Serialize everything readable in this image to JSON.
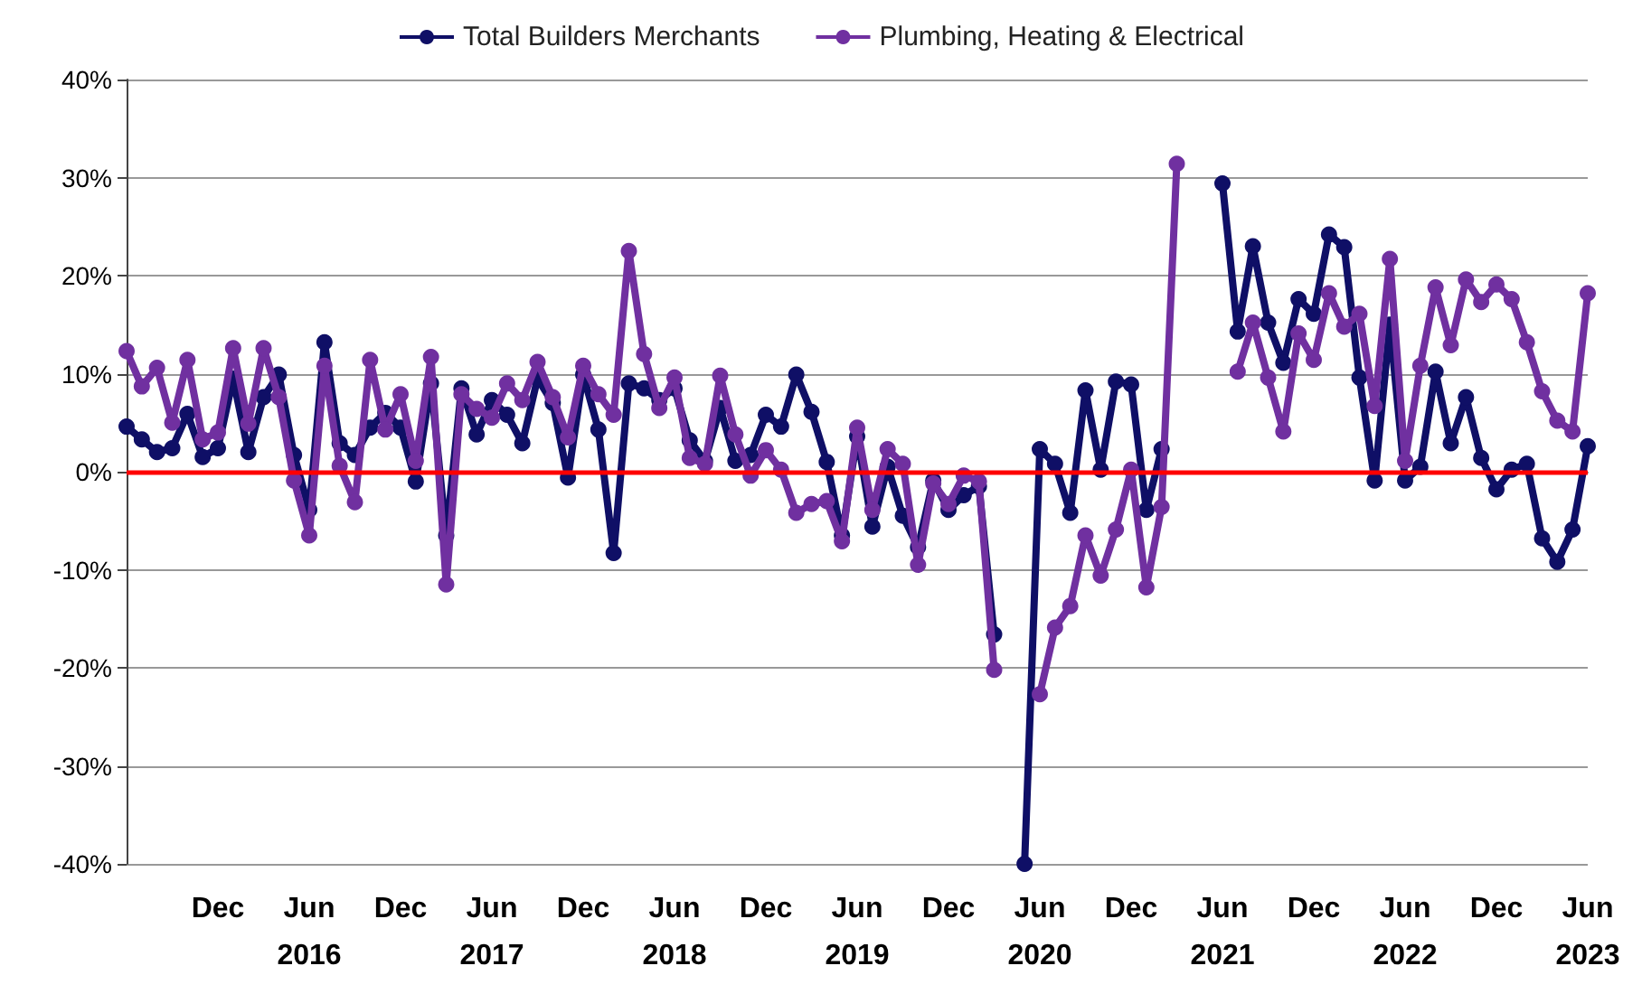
{
  "chart_data": {
    "type": "line",
    "categories": [
      null,
      null,
      null,
      null,
      null,
      null,
      "Dec",
      null,
      null,
      null,
      null,
      null,
      "Jun\n2016",
      null,
      null,
      null,
      null,
      null,
      "Dec",
      null,
      null,
      null,
      null,
      null,
      "Jun\n2017",
      null,
      null,
      null,
      null,
      null,
      "Dec",
      null,
      null,
      null,
      null,
      null,
      "Jun\n2018",
      null,
      null,
      null,
      null,
      null,
      "Dec",
      null,
      null,
      null,
      null,
      null,
      "Jun\n2019",
      null,
      null,
      null,
      null,
      null,
      "Dec",
      null,
      null,
      null,
      null,
      null,
      "Jun\n2020",
      null,
      null,
      null,
      null,
      null,
      "Dec",
      null,
      null,
      null,
      null,
      null,
      "Jun\n2021",
      null,
      null,
      null,
      null,
      null,
      "Dec",
      null,
      null,
      null,
      null,
      null,
      "Jun\n2022",
      null,
      null,
      null,
      null,
      null,
      "Dec",
      null,
      null,
      null,
      null,
      null,
      "Jun\n2023"
    ],
    "series": [
      {
        "name": "Total Builders Merchants",
        "color": "#0f0f66",
        "values": [
          4.6,
          3.3,
          2.0,
          2.4,
          5.9,
          1.5,
          2.4,
          9.5,
          2.0,
          7.6,
          9.9,
          1.7,
          -3.9,
          13.2,
          2.9,
          1.7,
          4.5,
          6.0,
          4.5,
          -1.0,
          9.0,
          -6.5,
          8.5,
          3.8,
          7.3,
          5.8,
          2.9,
          9.5,
          7.0,
          -0.6,
          9.9,
          4.3,
          -8.3,
          9.0,
          8.5,
          7.3,
          8.5,
          3.2,
          1.1,
          6.5,
          1.1,
          1.7,
          5.8,
          4.6,
          9.9,
          6.1,
          1.0,
          -6.5,
          3.6,
          -5.6,
          0.5,
          -4.5,
          -7.7,
          -0.9,
          -3.9,
          -2.4,
          -1.5,
          -16.6,
          null,
          -40,
          2.3,
          0.8,
          -4.2,
          8.3,
          0.2,
          9.2,
          8.9,
          -3.9,
          2.3,
          null,
          null,
          null,
          29.4,
          14.3,
          23,
          15.2,
          11.1,
          17.6,
          16.1,
          24.2,
          22.9,
          9.6,
          -0.9,
          15,
          -0.9,
          0.5,
          10.2,
          2.9,
          7.6,
          1.4,
          -1.8,
          0.2,
          0.8,
          -6.8,
          -9.2,
          -5.9,
          2.6
        ]
      },
      {
        "name": "Plumbing, Heating & Electrical",
        "color": "#7030a0",
        "values": [
          12.3,
          8.7,
          10.6,
          5.0,
          11.4,
          3.3,
          4.0,
          12.6,
          4.9,
          12.6,
          7.6,
          -0.9,
          -6.5,
          10.8,
          0.6,
          -3.1,
          11.4,
          4.3,
          7.9,
          1.1,
          11.7,
          -11.5,
          7.9,
          6.4,
          5.5,
          9.0,
          7.3,
          11.2,
          7.6,
          3.5,
          10.8,
          7.9,
          5.8,
          22.5,
          12.0,
          6.5,
          9.6,
          1.4,
          0.8,
          9.8,
          3.8,
          -0.4,
          2.2,
          0.2,
          -4.2,
          -3.3,
          -3.0,
          -7.1,
          4.5,
          -3.9,
          2.3,
          0.8,
          -9.5,
          -1.2,
          -3.3,
          -0.4,
          -1.0,
          -20.2,
          null,
          null,
          -22.7,
          -15.9,
          -13.7,
          -6.5,
          -10.6,
          -5.9,
          0.2,
          -11.8,
          -3.6,
          31.4,
          null,
          null,
          null,
          10.2,
          15.2,
          9.6,
          4.1,
          14.1,
          11.4,
          18.2,
          14.8,
          16.1,
          6.7,
          21.7,
          1.1,
          10.8,
          18.8,
          12.9,
          19.6,
          17.3,
          19.1,
          17.6,
          13.2,
          8.2,
          5.2,
          4.1,
          18.2
        ]
      }
    ],
    "ylim": [
      -40,
      40
    ],
    "yticks": [
      {
        "value": -40,
        "label": "-40%"
      },
      {
        "value": -30,
        "label": "-30%"
      },
      {
        "value": -20,
        "label": "-20%"
      },
      {
        "value": -10,
        "label": "-10%"
      },
      {
        "value": 0,
        "label": "0%"
      },
      {
        "value": 10,
        "label": "10%"
      },
      {
        "value": 20,
        "label": "20%"
      },
      {
        "value": 30,
        "label": "30%"
      },
      {
        "value": 40,
        "label": "40%"
      }
    ],
    "grid": "y",
    "legend": "top",
    "marker": "circle",
    "ref_lines": [
      {
        "axis": "y",
        "value": 0,
        "color": "#ff0000"
      }
    ]
  }
}
